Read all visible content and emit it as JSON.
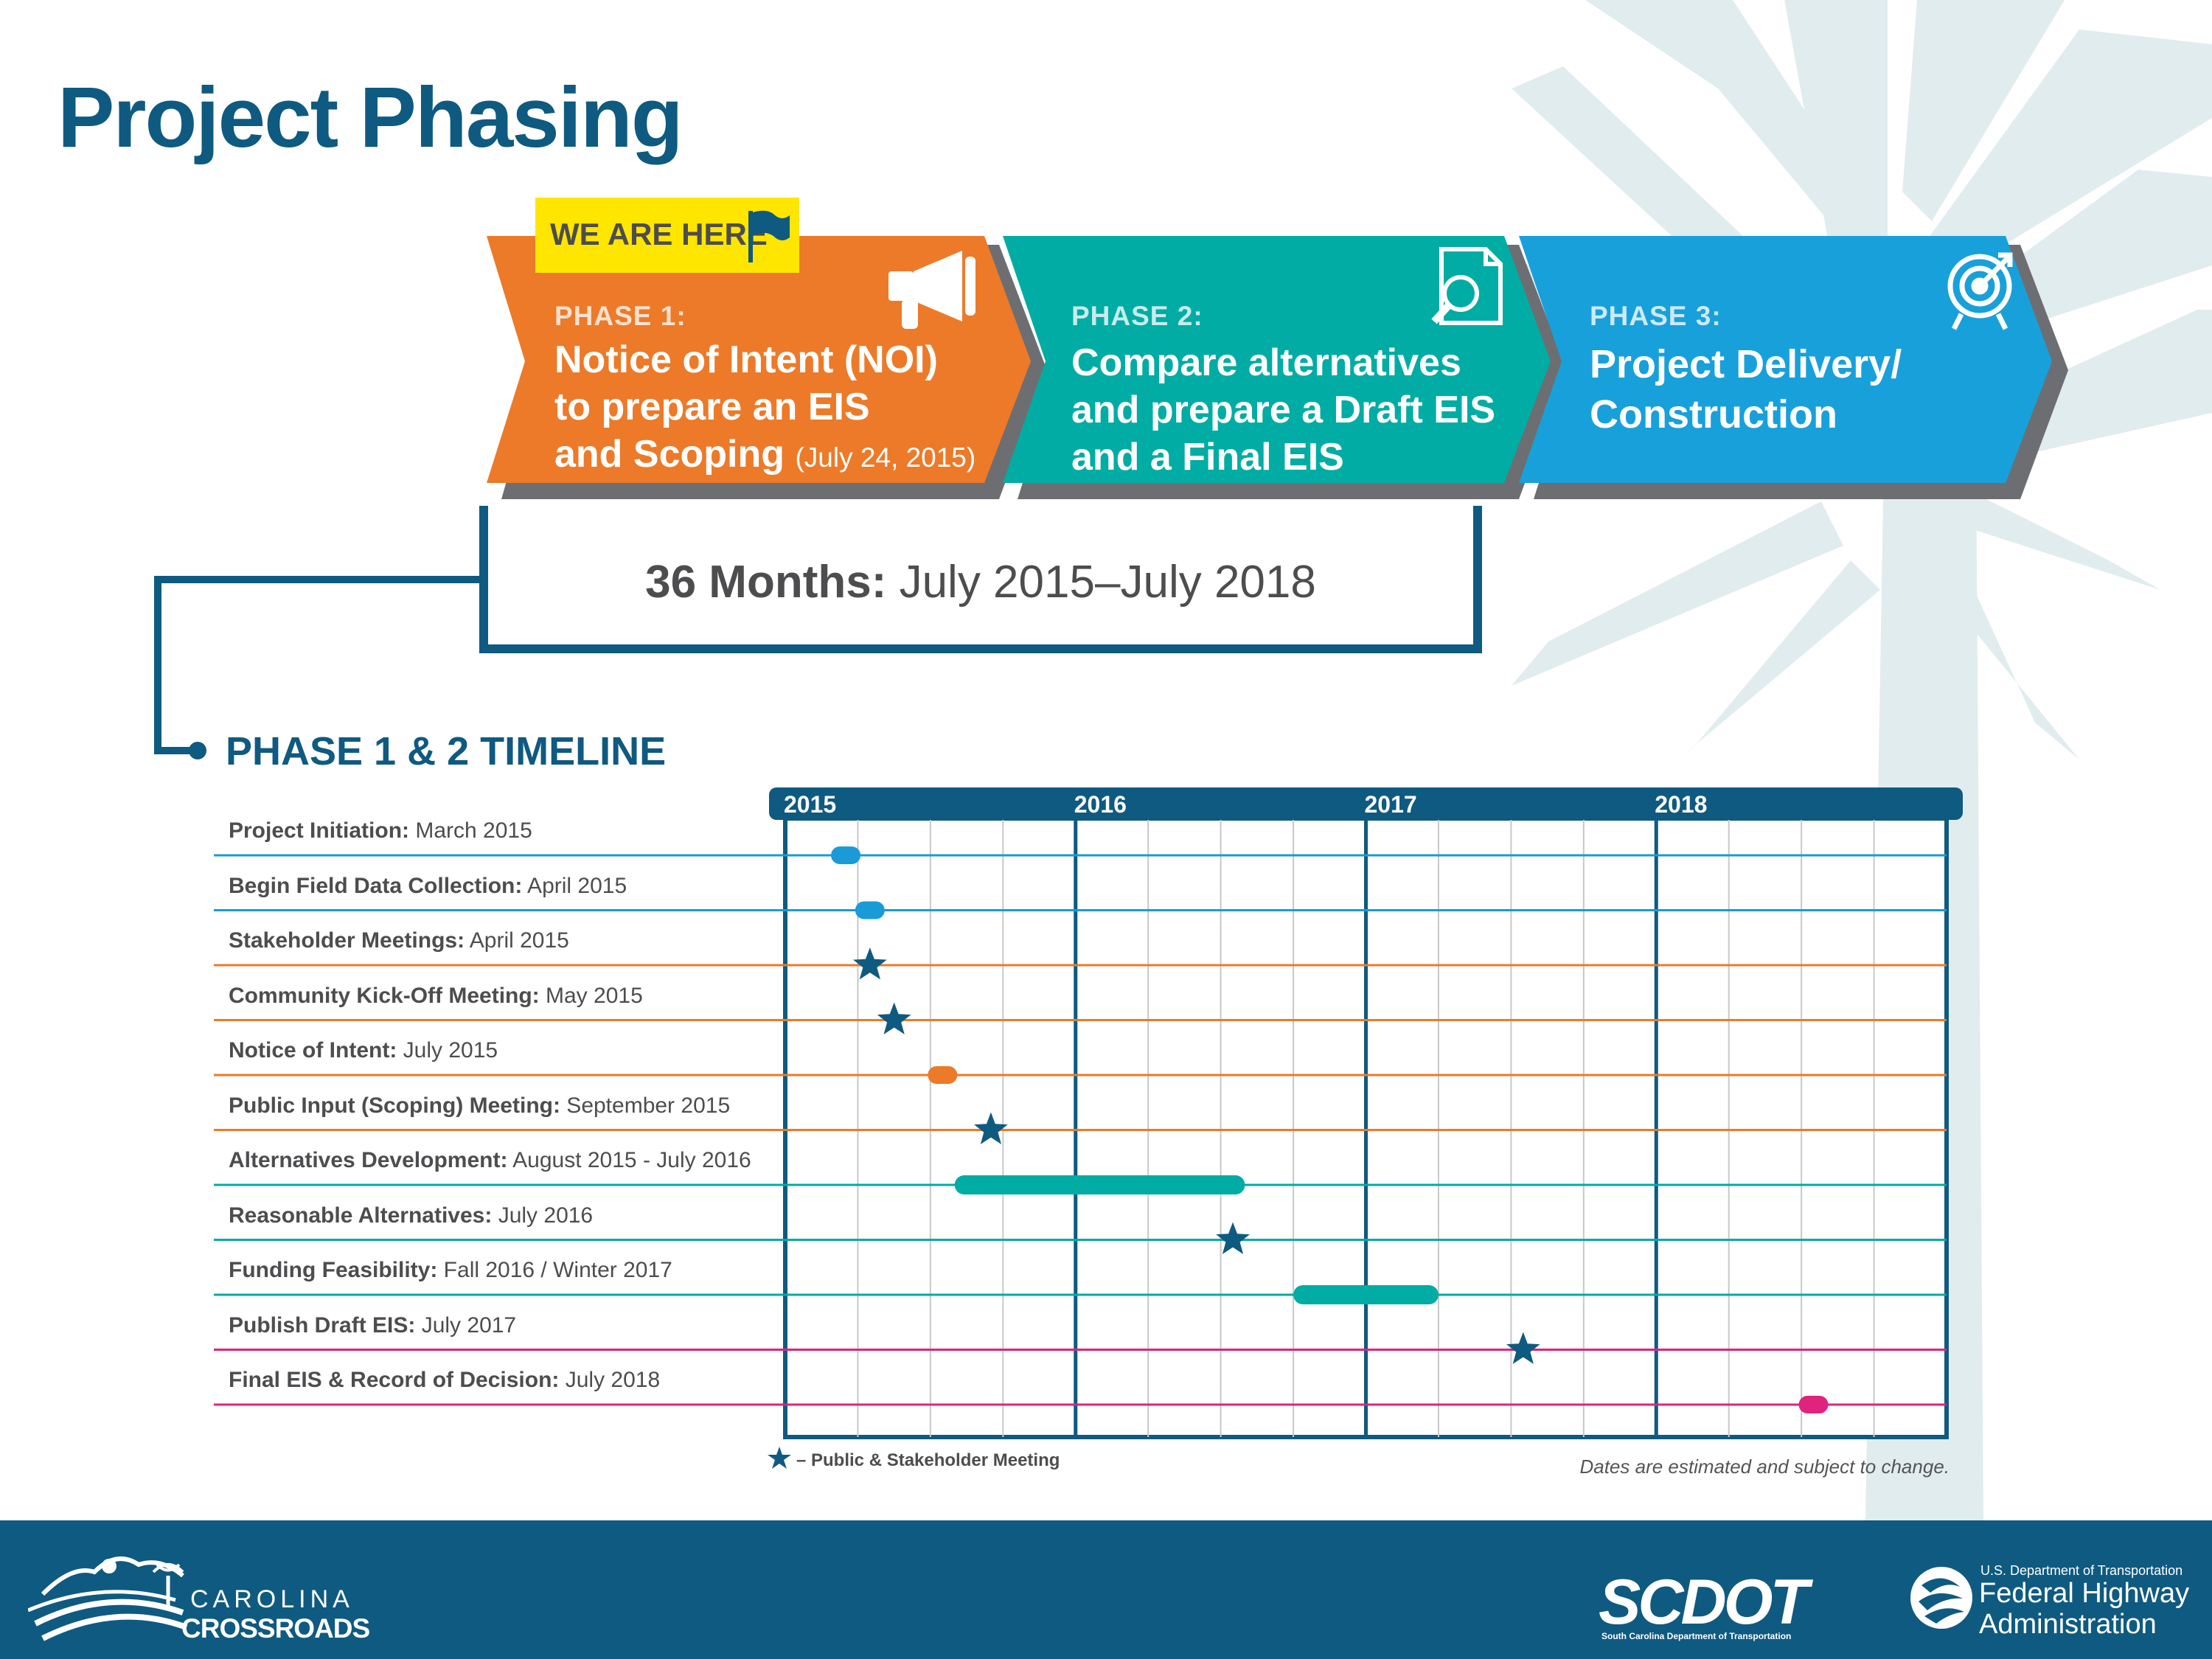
{
  "title": "Project Phasing",
  "badge": "WE ARE HERE",
  "phases": [
    {
      "label": "PHASE 1:",
      "title_lines": [
        "Notice of Intent (NOI)",
        "to prepare an EIS",
        "and Scoping"
      ],
      "date": "(July 24, 2015)",
      "color": "#ec7a29",
      "icon": "megaphone-icon"
    },
    {
      "label": "PHASE 2:",
      "title_lines": [
        "Compare alternatives",
        "and prepare a Draft EIS",
        "and a Final EIS"
      ],
      "color": "#00aca4",
      "icon": "document-search-icon"
    },
    {
      "label": "PHASE 3:",
      "title_lines": [
        "Project Delivery/",
        "Construction"
      ],
      "color": "#18a0db",
      "icon": "target-icon"
    }
  ],
  "duration": {
    "bold": "36 Months:",
    "text": " July 2015–July 2018"
  },
  "timeline_title": "PHASE 1 & 2 TIMELINE",
  "legend": "– Public & Stakeholder Meeting",
  "note": "Dates are estimated and subject to change.",
  "colors": {
    "navy": "#0f5a80",
    "blue": "#1a9bd7",
    "orange": "#ec7a29",
    "teal": "#00aca4",
    "pink": "#e0237c",
    "text": "#4d4d4f",
    "grid": "#c8c8c8",
    "palm": "#e1ecef"
  },
  "chart_data": {
    "type": "gantt",
    "years": [
      "2015",
      "2016",
      "2017",
      "2018"
    ],
    "x_range": [
      "2015-01",
      "2018-12"
    ],
    "grid": true,
    "tasks": [
      {
        "name": "Project Initiation:",
        "date_text": "March 2015",
        "start": "2015-03",
        "end": "2015-03",
        "marker": "dot",
        "color": "#1a9bd7"
      },
      {
        "name": "Begin Field Data Collection:",
        "date_text": "April 2015",
        "start": "2015-04",
        "end": "2015-04",
        "marker": "dot",
        "color": "#1a9bd7"
      },
      {
        "name": "Stakeholder Meetings:",
        "date_text": "April 2015",
        "start": "2015-04",
        "end": "2015-04",
        "marker": "star",
        "color": "#ec7a29"
      },
      {
        "name": "Community Kick-Off Meeting:",
        "date_text": "May 2015",
        "start": "2015-05",
        "end": "2015-05",
        "marker": "star",
        "color": "#ec7a29"
      },
      {
        "name": "Notice of Intent:",
        "date_text": "July 2015",
        "start": "2015-07",
        "end": "2015-07",
        "marker": "dot",
        "color": "#ec7a29"
      },
      {
        "name": "Public Input (Scoping) Meeting:",
        "date_text": "September 2015",
        "start": "2015-09",
        "end": "2015-09",
        "marker": "star",
        "color": "#ec7a29"
      },
      {
        "name": "Alternatives Development:",
        "date_text": "August 2015 - July 2016",
        "start": "2015-08",
        "end": "2016-07",
        "marker": "bar",
        "color": "#00aca4"
      },
      {
        "name": "Reasonable Alternatives:",
        "date_text": "July 2016",
        "start": "2016-07",
        "end": "2016-07",
        "marker": "star",
        "color": "#00aca4"
      },
      {
        "name": "Funding Feasibility:",
        "date_text": "Fall 2016 / Winter 2017",
        "start": "2016-10",
        "end": "2017-03",
        "marker": "bar",
        "color": "#00aca4"
      },
      {
        "name": "Publish Draft EIS:",
        "date_text": "July 2017",
        "start": "2017-07",
        "end": "2017-07",
        "marker": "star",
        "color": "#e0237c"
      },
      {
        "name": "Final EIS & Record of Decision:",
        "date_text": "July 2018",
        "start": "2018-07",
        "end": "2018-07",
        "marker": "dot",
        "color": "#e0237c"
      }
    ]
  },
  "footer": {
    "cc_line1": "CAROLINA",
    "cc_line2": "CROSSROADS",
    "scdot": "SCDOT",
    "scdot_sub": "South Carolina Department of Transportation",
    "fhwa_small": "U.S. Department of Transportation",
    "fhwa_line1": "Federal Highway",
    "fhwa_line2": "Administration"
  }
}
